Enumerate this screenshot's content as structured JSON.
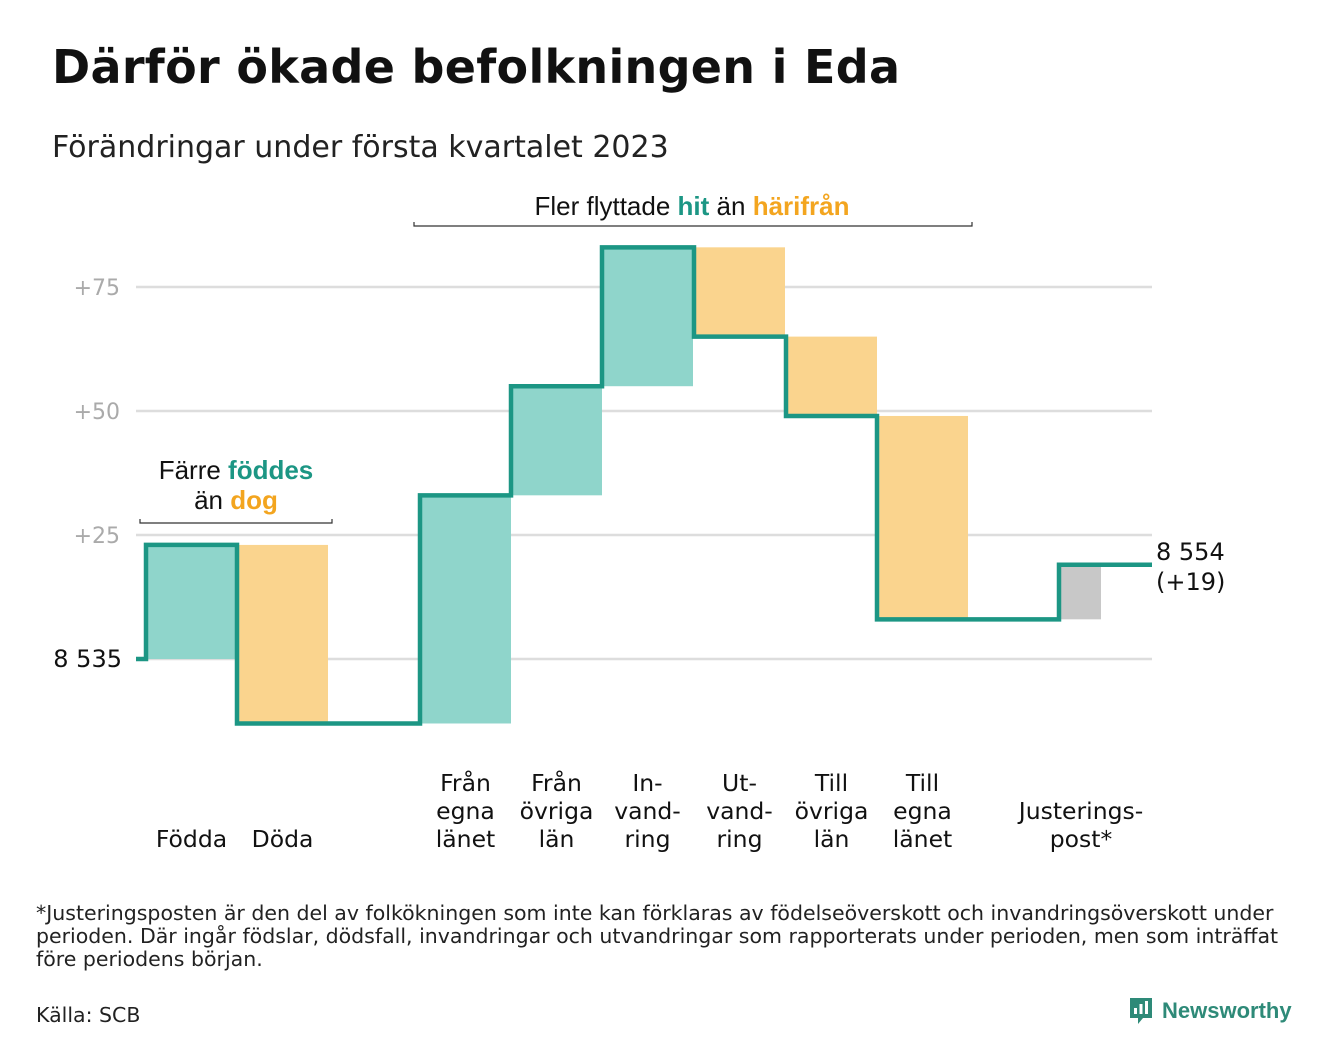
{
  "title": "Därför ökade befolkningen i Eda",
  "subtitle": "Förändringar under första kvartalet 2023",
  "colors": {
    "increase": "#8fd5cb",
    "decrease": "#fad48e",
    "adjustment": "#c8c8c8",
    "step_line": "#1c9684",
    "accent_green": "#1c9684",
    "accent_orange": "#f3a51f",
    "grid": "#dddddd",
    "tick_text": "#aaaaaa"
  },
  "annotations": {
    "births": {
      "pre": "Färre ",
      "hl1": "föddes",
      "mid": "än ",
      "hl2": "dog"
    },
    "migration": {
      "pre": "Fler flyttade ",
      "hl1": "hit",
      "mid": " än ",
      "hl2": "härifrån"
    }
  },
  "chart_data": {
    "type": "bar",
    "subtype": "waterfall",
    "base_value": 8535,
    "base_label": "8 535",
    "end_label": "8 554",
    "end_change_label": "(+19)",
    "yticks": [
      {
        "value": 25,
        "label": "+25"
      },
      {
        "value": 50,
        "label": "+50"
      },
      {
        "value": 75,
        "label": "+75"
      }
    ],
    "ylim": [
      -14,
      85
    ],
    "grid": true,
    "steps": [
      {
        "label": [
          "Födda"
        ],
        "delta": 23,
        "kind": "increase"
      },
      {
        "label": [
          "Döda"
        ],
        "delta": -36,
        "kind": "decrease"
      },
      {
        "label": [
          "Från",
          "egna",
          "länet"
        ],
        "delta": 46,
        "kind": "increase"
      },
      {
        "label": [
          "Från",
          "övriga",
          "län"
        ],
        "delta": 22,
        "kind": "increase"
      },
      {
        "label": [
          "In-",
          "vand-",
          "ring"
        ],
        "delta": 28,
        "kind": "increase"
      },
      {
        "label": [
          "Ut-",
          "vand-",
          "ring"
        ],
        "delta": -18,
        "kind": "decrease"
      },
      {
        "label": [
          "Till",
          "övriga",
          "län"
        ],
        "delta": -16,
        "kind": "decrease"
      },
      {
        "label": [
          "Till",
          "egna",
          "länet"
        ],
        "delta": -41,
        "kind": "decrease"
      },
      {
        "label": [
          "Justerings-",
          "post*"
        ],
        "delta": 11,
        "kind": "adjustment"
      }
    ]
  },
  "footnote": "*Justeringsposten är den del av folkökningen som inte kan förklaras av födelseöverskott och invandringsöverskott under perioden. Där ingår födslar, dödsfall, invandringar och utvandringar som rapporterats under perioden, men som inträffat före periodens början.",
  "source": "Källa: SCB",
  "brand": {
    "name": "Newsworthy",
    "icon": "newsworthy-logo-icon"
  }
}
